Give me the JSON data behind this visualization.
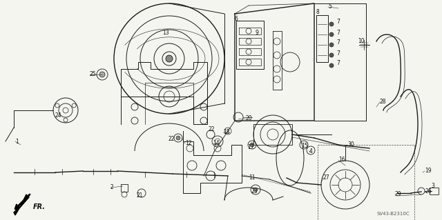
{
  "background_color": "#f5f5f0",
  "watermark": "SV43-B2310C",
  "figsize": [
    6.4,
    3.19
  ],
  "dpi": 100,
  "fr_label": "FR."
}
